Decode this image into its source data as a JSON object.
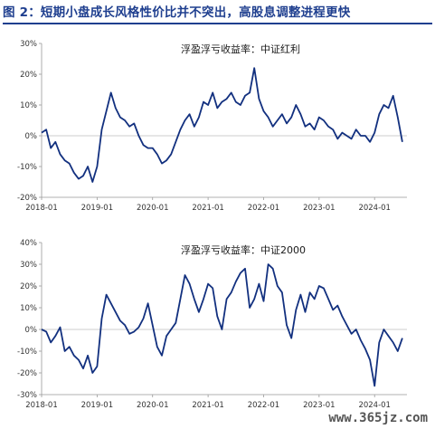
{
  "figure_title": "图 2：短期小盘成长风格性价比并不突出，高股息调整进程更快",
  "watermark": "www.365jz.com",
  "colors": {
    "line": "#12307f",
    "title": "#1f3f8f",
    "zero_line": "#bbbbbb"
  },
  "chart_data": [
    {
      "type": "line",
      "title": "浮盈浮亏收益率：中证红利",
      "xlim": [
        "2018-01",
        "2024-08"
      ],
      "ylim": [
        -20,
        30
      ],
      "x_ticks": [
        "2018-01",
        "2019-01",
        "2020-01",
        "2021-01",
        "2022-01",
        "2023-01",
        "2024-01"
      ],
      "y_ticks": [
        -20,
        -10,
        0,
        10,
        20,
        30
      ],
      "y_tick_labels": [
        "-20%",
        "-10%",
        "0%",
        "10%",
        "20%",
        "30%"
      ],
      "grid": false,
      "series": [
        {
          "x": [
            "2018-01",
            "2018-02",
            "2018-03",
            "2018-04",
            "2018-05",
            "2018-06",
            "2018-07",
            "2018-08",
            "2018-09",
            "2018-10",
            "2018-11",
            "2018-12",
            "2019-01",
            "2019-02",
            "2019-03",
            "2019-04",
            "2019-05",
            "2019-06",
            "2019-07",
            "2019-08",
            "2019-09",
            "2019-10",
            "2019-11",
            "2019-12",
            "2020-01",
            "2020-02",
            "2020-03",
            "2020-04",
            "2020-05",
            "2020-06",
            "2020-07",
            "2020-08",
            "2020-09",
            "2020-10",
            "2020-11",
            "2020-12",
            "2021-01",
            "2021-02",
            "2021-03",
            "2021-04",
            "2021-05",
            "2021-06",
            "2021-07",
            "2021-08",
            "2021-09",
            "2021-10",
            "2021-11",
            "2021-12",
            "2022-01",
            "2022-02",
            "2022-03",
            "2022-04",
            "2022-05",
            "2022-06",
            "2022-07",
            "2022-08",
            "2022-09",
            "2022-10",
            "2022-11",
            "2022-12",
            "2023-01",
            "2023-02",
            "2023-03",
            "2023-04",
            "2023-05",
            "2023-06",
            "2023-07",
            "2023-08",
            "2023-09",
            "2023-10",
            "2023-11",
            "2023-12",
            "2024-01",
            "2024-02",
            "2024-03",
            "2024-04",
            "2024-05",
            "2024-06",
            "2024-07"
          ],
          "values": [
            1,
            2,
            -4,
            -2,
            -6,
            -8,
            -9,
            -12,
            -14,
            -13,
            -10,
            -15,
            -10,
            2,
            8,
            14,
            9,
            6,
            5,
            3,
            4,
            0,
            -3,
            -4,
            -4,
            -6,
            -9,
            -8,
            -6,
            -2,
            2,
            5,
            7,
            3,
            6,
            11,
            10,
            14,
            9,
            11,
            12,
            14,
            11,
            10,
            13,
            14,
            22,
            12,
            8,
            6,
            3,
            5,
            7,
            4,
            6,
            10,
            7,
            3,
            4,
            2,
            6,
            5,
            3,
            2,
            -1,
            1,
            0,
            -1,
            2,
            0,
            0,
            -2,
            1,
            7,
            10,
            9,
            13,
            6,
            -2
          ]
        }
      ]
    },
    {
      "type": "line",
      "title": "浮盈浮亏收益率：中证2000",
      "xlim": [
        "2018-01",
        "2024-08"
      ],
      "ylim": [
        -30,
        40
      ],
      "x_ticks": [
        "2018-01",
        "2019-01",
        "2020-01",
        "2021-01",
        "2022-01",
        "2023-01",
        "2024-01"
      ],
      "y_ticks": [
        -30,
        -20,
        -10,
        0,
        10,
        20,
        30,
        40
      ],
      "y_tick_labels": [
        "-30%",
        "-20%",
        "-10%",
        "0%",
        "10%",
        "20%",
        "30%",
        "40%"
      ],
      "grid": false,
      "series": [
        {
          "x": [
            "2018-01",
            "2018-02",
            "2018-03",
            "2018-04",
            "2018-05",
            "2018-06",
            "2018-07",
            "2018-08",
            "2018-09",
            "2018-10",
            "2018-11",
            "2018-12",
            "2019-01",
            "2019-02",
            "2019-03",
            "2019-04",
            "2019-05",
            "2019-06",
            "2019-07",
            "2019-08",
            "2019-09",
            "2019-10",
            "2019-11",
            "2019-12",
            "2020-01",
            "2020-02",
            "2020-03",
            "2020-04",
            "2020-05",
            "2020-06",
            "2020-07",
            "2020-08",
            "2020-09",
            "2020-10",
            "2020-11",
            "2020-12",
            "2021-01",
            "2021-02",
            "2021-03",
            "2021-04",
            "2021-05",
            "2021-06",
            "2021-07",
            "2021-08",
            "2021-09",
            "2021-10",
            "2021-11",
            "2021-12",
            "2022-01",
            "2022-02",
            "2022-03",
            "2022-04",
            "2022-05",
            "2022-06",
            "2022-07",
            "2022-08",
            "2022-09",
            "2022-10",
            "2022-11",
            "2022-12",
            "2023-01",
            "2023-02",
            "2023-03",
            "2023-04",
            "2023-05",
            "2023-06",
            "2023-07",
            "2023-08",
            "2023-09",
            "2023-10",
            "2023-11",
            "2023-12",
            "2024-01",
            "2024-02",
            "2024-03",
            "2024-04",
            "2024-05",
            "2024-06",
            "2024-07"
          ],
          "values": [
            0,
            -1,
            -6,
            -3,
            1,
            -10,
            -8,
            -12,
            -14,
            -18,
            -12,
            -20,
            -17,
            5,
            16,
            12,
            8,
            4,
            2,
            -2,
            -1,
            1,
            5,
            12,
            2,
            -8,
            -12,
            -3,
            0,
            3,
            14,
            25,
            21,
            14,
            8,
            14,
            21,
            19,
            6,
            0,
            14,
            17,
            22,
            26,
            28,
            10,
            14,
            21,
            13,
            30,
            28,
            20,
            17,
            2,
            -4,
            9,
            16,
            8,
            17,
            14,
            20,
            19,
            14,
            9,
            11,
            6,
            2,
            -2,
            0,
            -5,
            -9,
            -14,
            -26,
            -6,
            0,
            -3,
            -6,
            -10,
            -4
          ]
        }
      ]
    }
  ]
}
